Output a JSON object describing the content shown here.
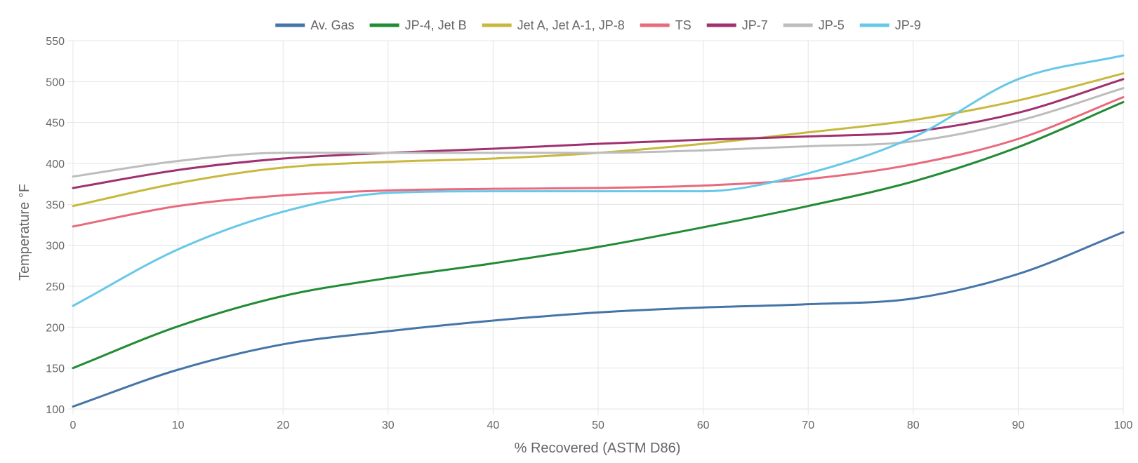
{
  "chart_data": {
    "type": "line",
    "title": "",
    "xlabel": "% Recovered (ASTM D86)",
    "ylabel": "Temperature °F",
    "xlim": [
      0,
      100
    ],
    "ylim": [
      100,
      550
    ],
    "xticks": [
      0,
      10,
      20,
      30,
      40,
      50,
      60,
      70,
      80,
      90,
      100
    ],
    "yticks": [
      100,
      150,
      200,
      250,
      300,
      350,
      400,
      450,
      500,
      550
    ],
    "grid": true,
    "legend_position": "top-center",
    "x": [
      0,
      10,
      20,
      30,
      40,
      50,
      60,
      70,
      80,
      90,
      100
    ],
    "series": [
      {
        "name": "Av. Gas",
        "color": "#4575a7",
        "values": [
          103,
          148,
          179,
          195,
          208,
          218,
          224,
          228,
          235,
          265,
          316
        ]
      },
      {
        "name": "JP-4, Jet B",
        "color": "#228b35",
        "values": [
          150,
          201,
          238,
          260,
          278,
          298,
          322,
          348,
          378,
          420,
          475
        ]
      },
      {
        "name": "Jet A, Jet A-1, JP-8",
        "color": "#c8b83e",
        "values": [
          348,
          376,
          395,
          402,
          406,
          413,
          424,
          438,
          453,
          477,
          510
        ]
      },
      {
        "name": "TS",
        "color": "#e86a7c",
        "values": [
          323,
          348,
          361,
          367,
          369,
          370,
          373,
          381,
          399,
          430,
          481
        ]
      },
      {
        "name": "JP-7",
        "color": "#a0306e",
        "values": [
          370,
          392,
          406,
          413,
          418,
          424,
          429,
          433,
          439,
          462,
          503
        ]
      },
      {
        "name": "JP-5",
        "color": "#bdbdbd",
        "values": [
          384,
          403,
          413,
          413,
          413,
          413,
          416,
          421,
          427,
          452,
          492
        ]
      },
      {
        "name": "JP-9",
        "color": "#67c8e8",
        "values": [
          226,
          295,
          341,
          364,
          366,
          366,
          366,
          388,
          432,
          503,
          532
        ]
      }
    ]
  }
}
